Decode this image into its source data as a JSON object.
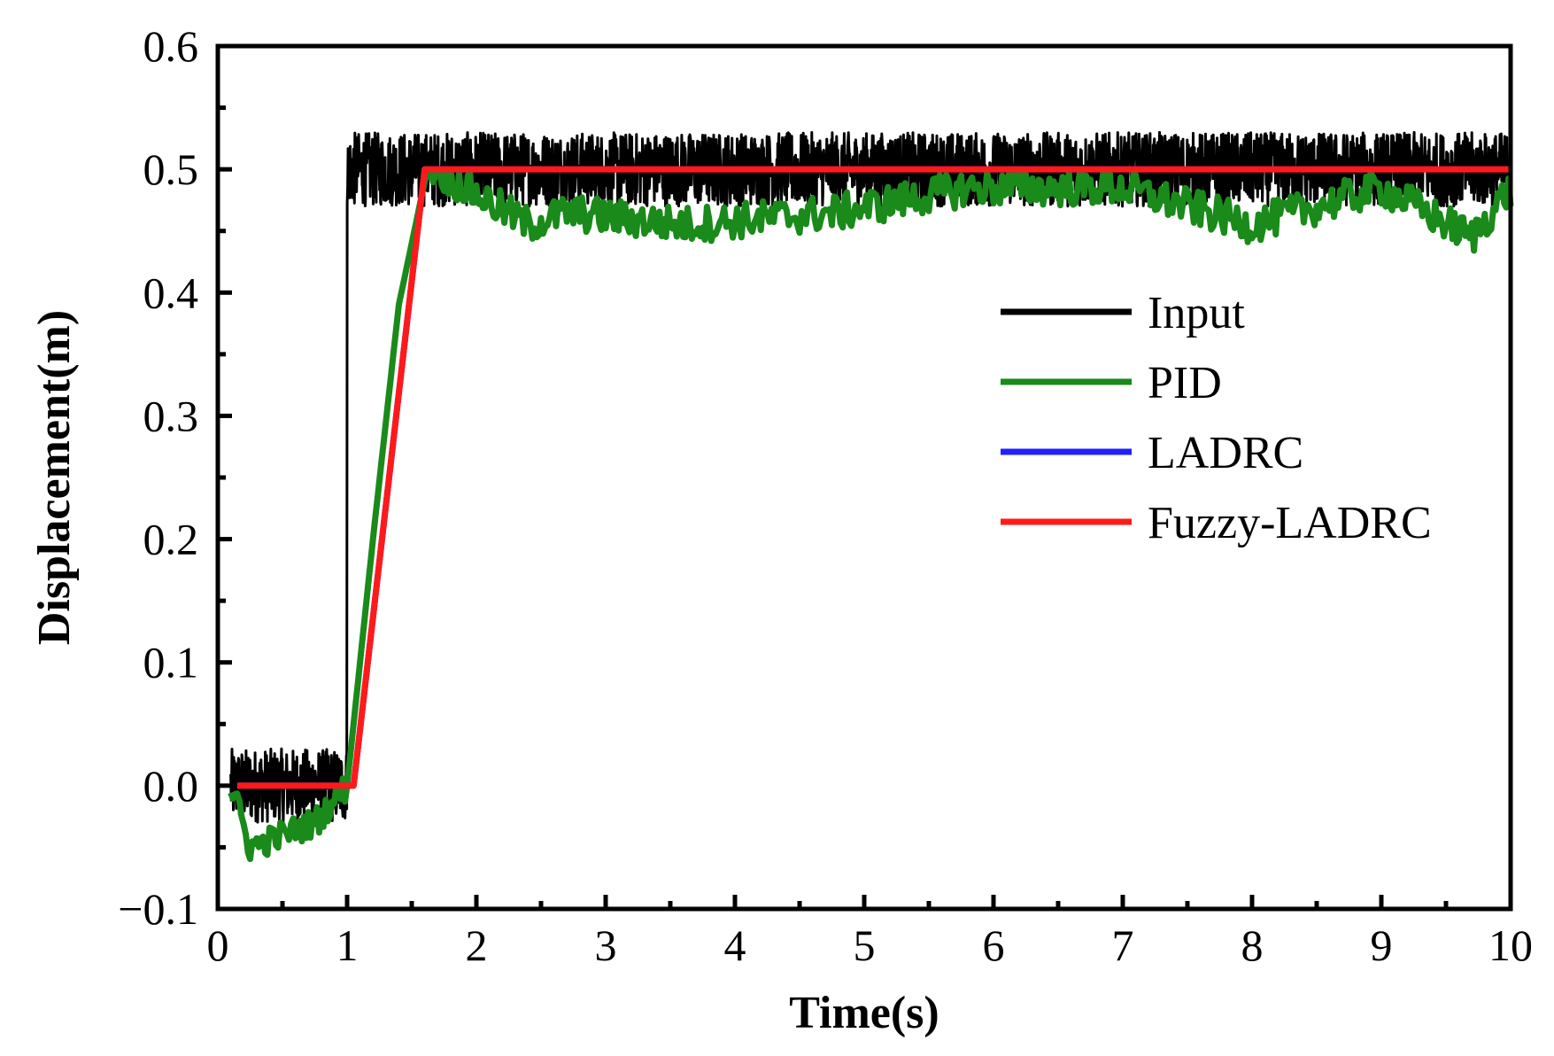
{
  "chart_data": {
    "type": "line",
    "title": "",
    "xlabel": "Time(s)",
    "ylabel": "Displacement(m)",
    "xlim": [
      0,
      10
    ],
    "ylim": [
      -0.1,
      0.6
    ],
    "x_ticks": [
      "0",
      "1",
      "2",
      "3",
      "4",
      "5",
      "6",
      "7",
      "8",
      "9",
      "10"
    ],
    "y_ticks": [
      "−0.1",
      "0.0",
      "0.1",
      "0.2",
      "0.3",
      "0.4",
      "0.5",
      "0.6"
    ],
    "grid": false,
    "legend_position": "right",
    "series": [
      {
        "name": "Input",
        "color": "#000000",
        "style": "noisy step",
        "x": [
          0.1,
          1.0,
          1.0,
          10.0
        ],
        "y": [
          0.0,
          0.0,
          0.5,
          0.5
        ],
        "noise_amplitude": 0.03
      },
      {
        "name": "PID",
        "color": "#1a8a1a",
        "x": [
          0.1,
          0.25,
          0.5,
          0.75,
          1.0,
          1.2,
          1.4,
          1.6,
          2.4,
          2.7,
          3.6,
          4.8,
          5.8,
          7.0,
          8.0,
          9.0,
          9.7,
          10.0
        ],
        "y": [
          0.0,
          -0.05,
          -0.04,
          -0.03,
          0.0,
          0.2,
          0.39,
          0.49,
          0.44,
          0.45,
          0.44,
          0.45,
          0.47,
          0.47,
          0.44,
          0.47,
          0.43,
          0.47
        ]
      },
      {
        "name": "LADRC",
        "color": "#1f1fff",
        "x": [
          0.15,
          1.05,
          1.6,
          10.0
        ],
        "y": [
          0.0,
          0.0,
          0.5,
          0.5
        ]
      },
      {
        "name": "Fuzzy-LADRC",
        "color": "#ff1a1a",
        "x": [
          0.15,
          1.05,
          1.6,
          10.0
        ],
        "y": [
          0.0,
          0.0,
          0.5,
          0.5
        ]
      }
    ]
  }
}
